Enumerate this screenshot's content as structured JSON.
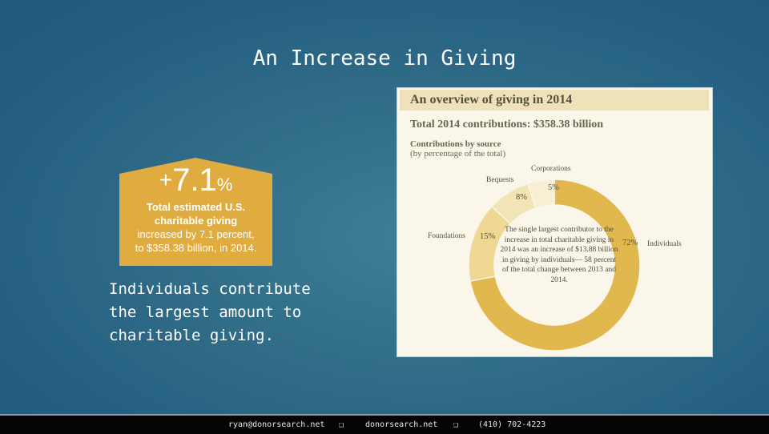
{
  "slide": {
    "title": "An Increase in Giving",
    "caption": "Individuals contribute the largest amount to charitable giving."
  },
  "badge": {
    "plus": "+",
    "number": "7.1",
    "percent_sign": "%",
    "headline_line1": "Total estimated U.S.",
    "headline_line2": "charitable giving",
    "line3": "increased by 7.1 percent,",
    "line4": "to $358.38 billion, in 2014.",
    "color": "#e0ac40"
  },
  "overview": {
    "header": "An overview of giving in 2014",
    "total": "Total 2014 contributions: $358.38 billion",
    "subhead_bold": "Contributions by source",
    "subhead_note": "(by percentage of the total)",
    "center_note": "The single largest contributor to the increase in total charitable giving in 2014 was an increase of $13.88 billion in giving by individuals— 58 percent of the total change between 2013 and 2014.",
    "colors": {
      "individuals": "#e0b84e",
      "foundations": "#efd893",
      "bequests": "#f3e4b5",
      "corporations": "#f8efd3"
    }
  },
  "chart_data": {
    "type": "pie",
    "title": "Contributions by source",
    "subtitle": "(by percentage of the total)",
    "categories": [
      "Individuals",
      "Foundations",
      "Bequests",
      "Corporations"
    ],
    "values": [
      72,
      15,
      8,
      5
    ],
    "labels": [
      "72%",
      "15%",
      "8%",
      "5%"
    ]
  },
  "footer": {
    "email": "ryan@donorsearch.net",
    "website": "donorsearch.net",
    "phone": "(410) 702-4223",
    "separator": "❑"
  }
}
